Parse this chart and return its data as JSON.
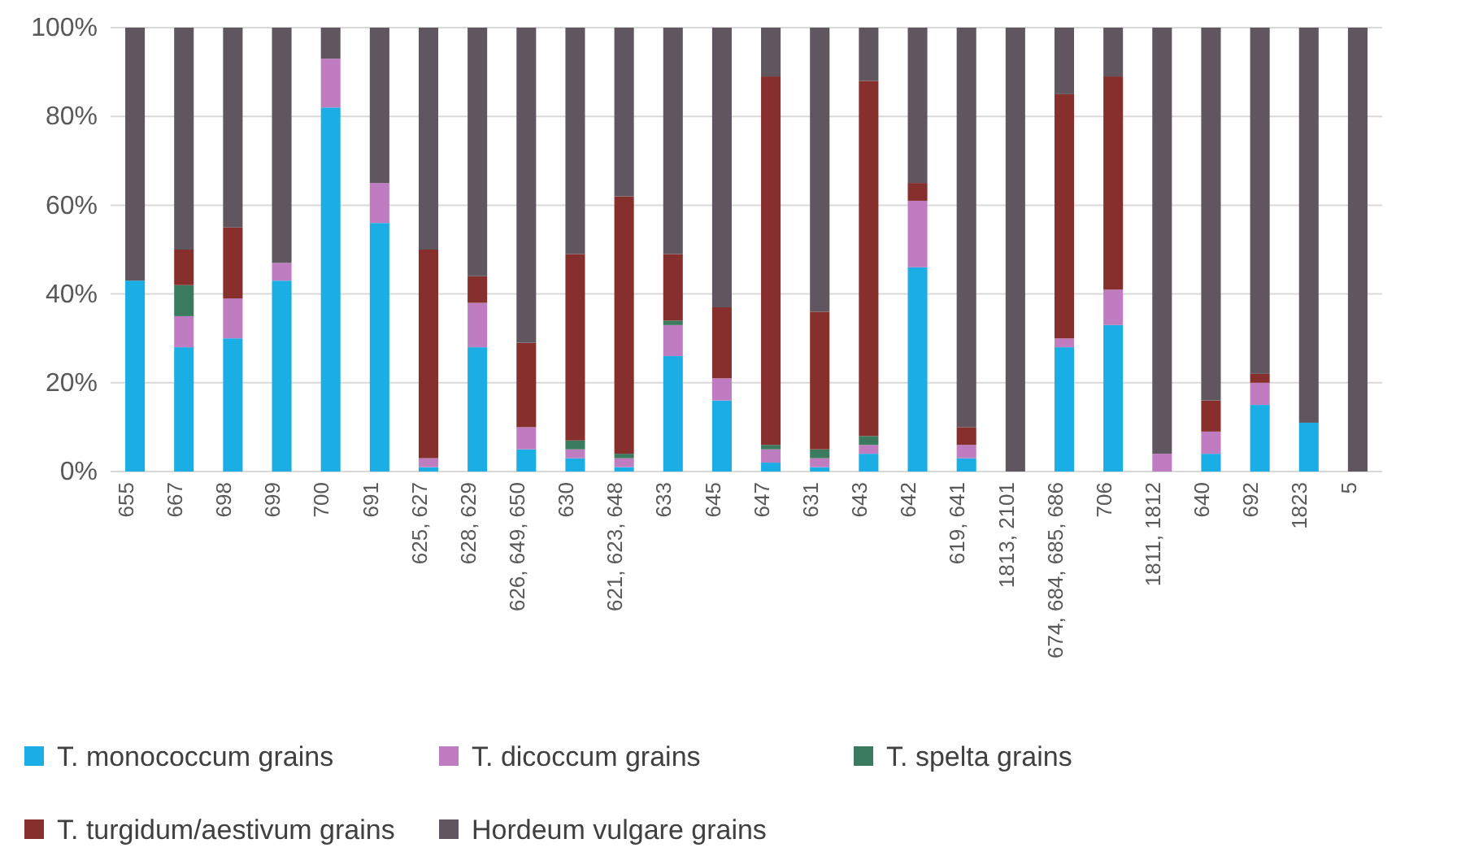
{
  "chart_data": {
    "type": "bar",
    "stacked": true,
    "grid": "y",
    "legend": "bottom",
    "categories": [
      "655",
      "667",
      "698",
      "699",
      "700",
      "691",
      "625, 627",
      "628, 629",
      "626, 649, 650",
      "630",
      "621, 623, 648",
      "633",
      "645",
      "647",
      "631",
      "643",
      "642",
      "619, 641",
      "1813, 2101",
      "674, 684, 685, 686",
      "706",
      "1811, 1812",
      "640",
      "692",
      "1823",
      "5"
    ],
    "ylim": [
      0,
      100
    ],
    "yticks": [
      {
        "value": 0,
        "label": "0%"
      },
      {
        "value": 20,
        "label": "20%"
      },
      {
        "value": 40,
        "label": "40%"
      },
      {
        "value": 60,
        "label": "60%"
      },
      {
        "value": 80,
        "label": "80%"
      },
      {
        "value": 100,
        "label": "100%"
      }
    ],
    "series": [
      {
        "name": "T. monococcum grains",
        "color": "#1aaee5",
        "values": [
          43,
          28,
          30,
          43,
          82,
          56,
          1,
          28,
          5,
          3,
          1,
          26,
          16,
          2,
          1,
          4,
          46,
          3,
          0,
          28,
          33,
          0,
          4,
          15,
          11,
          0
        ]
      },
      {
        "name": "T. dicoccum grains",
        "color": "#c07cc0",
        "values": [
          0,
          7,
          9,
          4,
          11,
          9,
          2,
          10,
          5,
          2,
          2,
          7,
          5,
          3,
          2,
          2,
          15,
          3,
          0,
          2,
          8,
          4,
          5,
          5,
          0,
          0
        ]
      },
      {
        "name": "T. spelta grains",
        "color": "#3a7a5e",
        "values": [
          0,
          7,
          0,
          0,
          0,
          0,
          0,
          0,
          0,
          2,
          1,
          1,
          0,
          1,
          2,
          2,
          0,
          0,
          0,
          0,
          0,
          0,
          0,
          0,
          0,
          0
        ]
      },
      {
        "name": "T. turgidum/aestivum grains",
        "color": "#862f2c",
        "values": [
          0,
          8,
          16,
          0,
          0,
          0,
          47,
          6,
          19,
          42,
          58,
          15,
          16,
          83,
          31,
          80,
          4,
          4,
          0,
          55,
          48,
          0,
          7,
          2,
          0,
          0
        ]
      },
      {
        "name": "Hordeum vulgare grains",
        "color": "#5f5660",
        "values": [
          57,
          50,
          45,
          53,
          7,
          35,
          50,
          56,
          71,
          51,
          38,
          51,
          63,
          11,
          64,
          12,
          35,
          90,
          100,
          15,
          11,
          96,
          84,
          78,
          89,
          100
        ]
      }
    ]
  }
}
